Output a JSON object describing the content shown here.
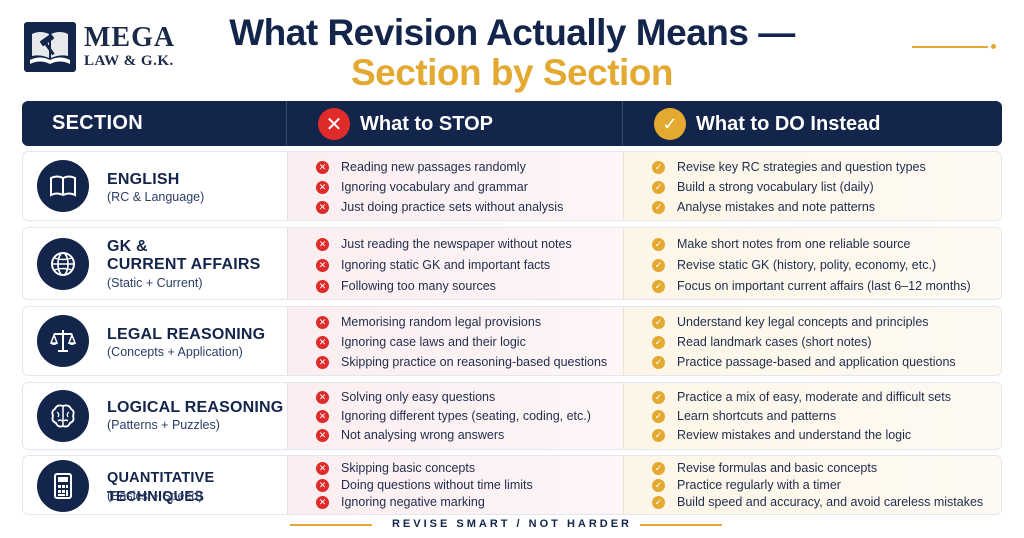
{
  "logo": {
    "line1": "MEGA",
    "line2": "LAW & G.K."
  },
  "title": {
    "line1": "What Revision Actually Means —",
    "line2": "Section by Section"
  },
  "header": {
    "section": "SECTION",
    "stop": "What to STOP",
    "do": "What to DO Instead",
    "stop_icon": "cross-icon",
    "do_icon": "check-icon"
  },
  "colors": {
    "navy": "#13254a",
    "gold": "#e3a930",
    "red": "#e02b2b"
  },
  "rows": [
    {
      "name": "ENGLISH",
      "name2": "",
      "sub": "(RC & Language)",
      "icon": "book-icon",
      "stop": [
        "Reading new passages randomly",
        "Ignoring vocabulary and grammar",
        "Just doing practice sets without analysis"
      ],
      "do": [
        "Revise key RC strategies and question types",
        "Build a strong vocabulary list (daily)",
        "Analyse mistakes and note patterns"
      ]
    },
    {
      "name": "GK &",
      "name2": "CURRENT AFFAIRS",
      "sub": "(Static + Current)",
      "icon": "globe-icon",
      "stop": [
        "Just reading the newspaper without notes",
        "Ignoring static GK and important facts",
        "Following too many sources"
      ],
      "do": [
        "Make short notes from one reliable source",
        "Revise static GK (history, polity, economy, etc.)",
        "Focus on important current affairs (last 6–12 months)"
      ]
    },
    {
      "name": "LEGAL REASONING",
      "name2": "",
      "sub": "(Concepts + Application)",
      "icon": "scales-icon",
      "stop": [
        "Memorising random legal provisions",
        "Ignoring case laws and their logic",
        "Skipping practice on reasoning-based questions"
      ],
      "do": [
        "Understand key legal concepts and principles",
        "Read landmark cases (short notes)",
        "Practice passage-based and application questions"
      ]
    },
    {
      "name": "LOGICAL REASONING",
      "name2": "",
      "sub": "(Patterns + Puzzles)",
      "icon": "brain-icon",
      "stop": [
        "Solving only easy questions",
        "Ignoring different types (seating, coding, etc.)",
        "Not analysing wrong answers"
      ],
      "do": [
        "Practice a mix of easy, moderate and difficult sets",
        "Learn shortcuts and patterns",
        "Review mistakes and understand the logic"
      ]
    },
    {
      "name": "QUANTITATIVE TECHNIQUES",
      "name2": "",
      "sub": "(Basics + Speed)",
      "icon": "calculator-icon",
      "stop": [
        "Skipping basic concepts",
        "Doing questions without time limits",
        "Ignoring negative marking"
      ],
      "do": [
        "Revise formulas and basic concepts",
        "Practice regularly with a timer",
        "Build speed and accuracy, and avoid careless mistakes"
      ]
    }
  ],
  "footer": "REVISE SMART / NOT HARDER"
}
